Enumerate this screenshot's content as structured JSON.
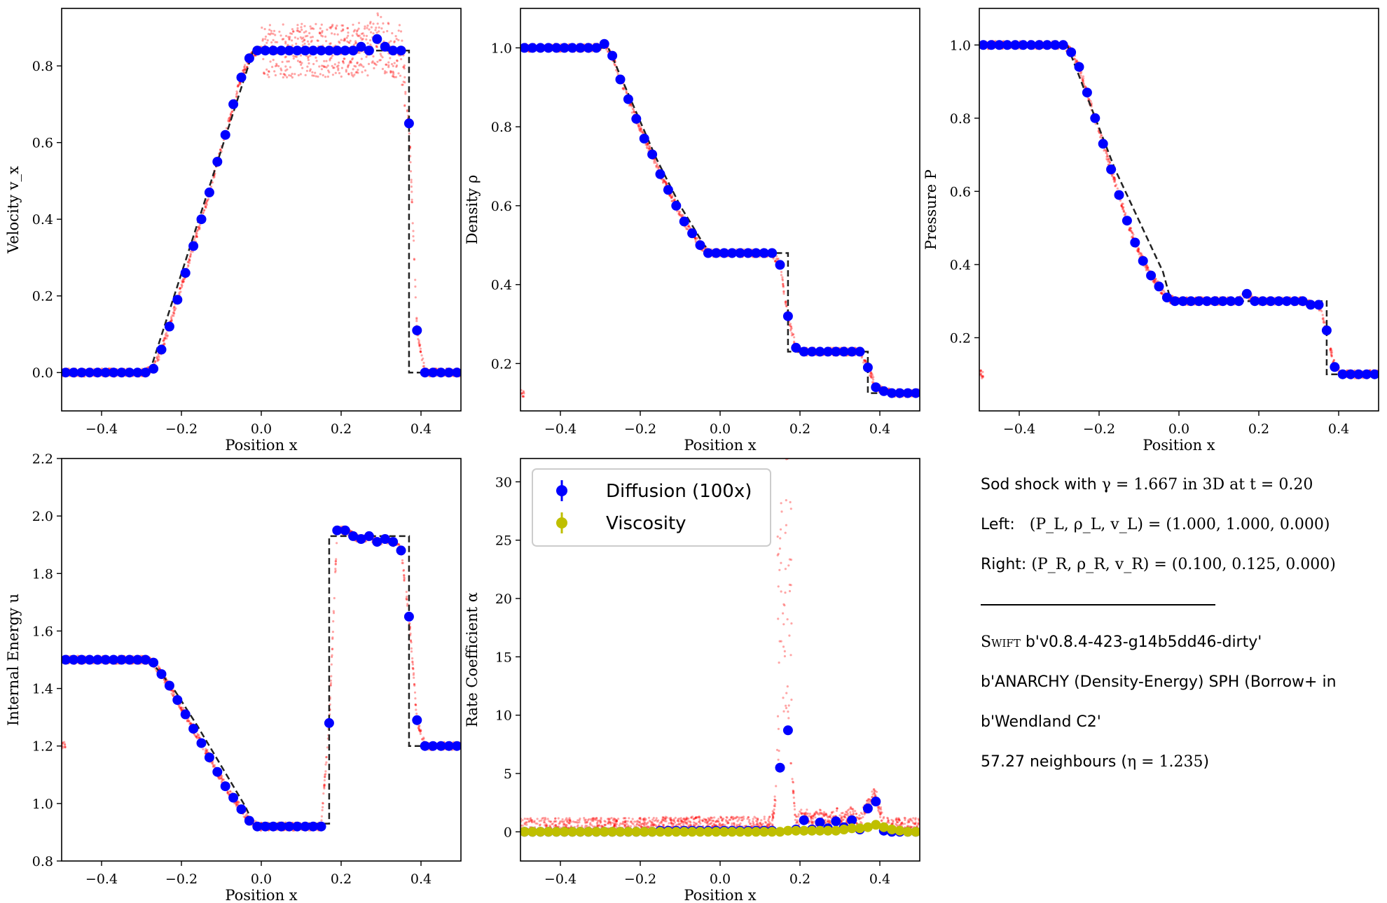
{
  "colors": {
    "scatter": "#ff0000",
    "diffusion": "#0000ff",
    "viscosity": "#bfbf00",
    "analytic": "#222222"
  },
  "panels": {
    "velocity": {
      "chart_data": {
        "type": "scatter",
        "xlabel": "Position x",
        "ylabel": "Velocity v_x",
        "xlim": [
          -0.5,
          0.5
        ],
        "ylim": [
          -0.1,
          0.95
        ],
        "xticks": [
          "−0.4",
          "−0.2",
          "0.0",
          "0.2",
          "0.4"
        ],
        "yticks": [
          "0.0",
          "0.2",
          "0.4",
          "0.6",
          "0.8"
        ],
        "analytic_x": [
          -0.5,
          -0.28,
          -0.02,
          0.37,
          0.37,
          0.5
        ],
        "analytic_y": [
          0.0,
          0.0,
          0.84,
          0.84,
          0.0,
          0.0
        ],
        "binned_x": [
          -0.49,
          -0.47,
          -0.45,
          -0.43,
          -0.41,
          -0.39,
          -0.37,
          -0.35,
          -0.33,
          -0.31,
          -0.29,
          -0.27,
          -0.25,
          -0.23,
          -0.21,
          -0.19,
          -0.17,
          -0.15,
          -0.13,
          -0.11,
          -0.09,
          -0.07,
          -0.05,
          -0.03,
          -0.01,
          0.01,
          0.03,
          0.05,
          0.07,
          0.09,
          0.11,
          0.13,
          0.15,
          0.17,
          0.19,
          0.21,
          0.23,
          0.25,
          0.27,
          0.29,
          0.31,
          0.33,
          0.35,
          0.37,
          0.39,
          0.41,
          0.43,
          0.45,
          0.47,
          0.49
        ],
        "binned_y": [
          0.0,
          0.0,
          0.0,
          0.0,
          0.0,
          0.0,
          0.0,
          0.0,
          0.0,
          0.0,
          0.0,
          0.01,
          0.06,
          0.12,
          0.19,
          0.26,
          0.33,
          0.4,
          0.47,
          0.55,
          0.62,
          0.7,
          0.77,
          0.82,
          0.84,
          0.84,
          0.84,
          0.84,
          0.84,
          0.84,
          0.84,
          0.84,
          0.84,
          0.84,
          0.84,
          0.84,
          0.84,
          0.85,
          0.84,
          0.87,
          0.85,
          0.84,
          0.84,
          0.65,
          0.11,
          0.0,
          0.0,
          0.0,
          0.0,
          0.0
        ]
      }
    },
    "density": {
      "chart_data": {
        "type": "scatter",
        "xlabel": "Position x",
        "ylabel": "Density ρ",
        "xlim": [
          -0.5,
          0.5
        ],
        "ylim": [
          0.08,
          1.1
        ],
        "xticks": [
          "−0.4",
          "−0.2",
          "0.0",
          "0.2",
          "0.4"
        ],
        "yticks": [
          "0.2",
          "0.4",
          "0.6",
          "0.8",
          "1.0"
        ],
        "analytic_x": [
          -0.5,
          -0.28,
          -0.22,
          -0.16,
          -0.1,
          -0.04,
          -0.02,
          0.17,
          0.17,
          0.37,
          0.37,
          0.5
        ],
        "analytic_y": [
          1.0,
          1.0,
          0.86,
          0.72,
          0.6,
          0.5,
          0.48,
          0.48,
          0.23,
          0.23,
          0.125,
          0.125
        ],
        "binned_x": [
          -0.49,
          -0.47,
          -0.45,
          -0.43,
          -0.41,
          -0.39,
          -0.37,
          -0.35,
          -0.33,
          -0.31,
          -0.29,
          -0.27,
          -0.25,
          -0.23,
          -0.21,
          -0.19,
          -0.17,
          -0.15,
          -0.13,
          -0.11,
          -0.09,
          -0.07,
          -0.05,
          -0.03,
          -0.01,
          0.01,
          0.03,
          0.05,
          0.07,
          0.09,
          0.11,
          0.13,
          0.15,
          0.17,
          0.19,
          0.21,
          0.23,
          0.25,
          0.27,
          0.29,
          0.31,
          0.33,
          0.35,
          0.37,
          0.39,
          0.41,
          0.43,
          0.45,
          0.47,
          0.49
        ],
        "binned_y": [
          1.0,
          1.0,
          1.0,
          1.0,
          1.0,
          1.0,
          1.0,
          1.0,
          1.0,
          1.0,
          1.01,
          0.98,
          0.92,
          0.87,
          0.82,
          0.77,
          0.73,
          0.68,
          0.64,
          0.6,
          0.56,
          0.53,
          0.5,
          0.48,
          0.48,
          0.48,
          0.48,
          0.48,
          0.48,
          0.48,
          0.48,
          0.48,
          0.45,
          0.32,
          0.24,
          0.23,
          0.23,
          0.23,
          0.23,
          0.23,
          0.23,
          0.23,
          0.23,
          0.19,
          0.14,
          0.13,
          0.125,
          0.125,
          0.125,
          0.125
        ]
      }
    },
    "pressure": {
      "chart_data": {
        "type": "scatter",
        "xlabel": "Position x",
        "ylabel": "Pressure P",
        "xlim": [
          -0.5,
          0.5
        ],
        "ylim": [
          0.0,
          1.1
        ],
        "xticks": [
          "−0.4",
          "−0.2",
          "0.0",
          "0.2",
          "0.4"
        ],
        "yticks": [
          "0.2",
          "0.4",
          "0.6",
          "0.8",
          "1.0"
        ],
        "analytic_x": [
          -0.5,
          -0.28,
          -0.22,
          -0.16,
          -0.1,
          -0.04,
          -0.02,
          0.37,
          0.37,
          0.5
        ],
        "analytic_y": [
          1.0,
          1.0,
          0.83,
          0.66,
          0.52,
          0.38,
          0.3,
          0.3,
          0.1,
          0.1
        ],
        "binned_x": [
          -0.49,
          -0.47,
          -0.45,
          -0.43,
          -0.41,
          -0.39,
          -0.37,
          -0.35,
          -0.33,
          -0.31,
          -0.29,
          -0.27,
          -0.25,
          -0.23,
          -0.21,
          -0.19,
          -0.17,
          -0.15,
          -0.13,
          -0.11,
          -0.09,
          -0.07,
          -0.05,
          -0.03,
          -0.01,
          0.01,
          0.03,
          0.05,
          0.07,
          0.09,
          0.11,
          0.13,
          0.15,
          0.17,
          0.19,
          0.21,
          0.23,
          0.25,
          0.27,
          0.29,
          0.31,
          0.33,
          0.35,
          0.37,
          0.39,
          0.41,
          0.43,
          0.45,
          0.47,
          0.49
        ],
        "binned_y": [
          1.0,
          1.0,
          1.0,
          1.0,
          1.0,
          1.0,
          1.0,
          1.0,
          1.0,
          1.0,
          1.0,
          0.98,
          0.94,
          0.87,
          0.8,
          0.73,
          0.66,
          0.59,
          0.52,
          0.46,
          0.41,
          0.37,
          0.34,
          0.31,
          0.3,
          0.3,
          0.3,
          0.3,
          0.3,
          0.3,
          0.3,
          0.3,
          0.3,
          0.32,
          0.3,
          0.3,
          0.3,
          0.3,
          0.3,
          0.3,
          0.3,
          0.29,
          0.29,
          0.22,
          0.12,
          0.1,
          0.1,
          0.1,
          0.1,
          0.1
        ]
      }
    },
    "energy": {
      "chart_data": {
        "type": "scatter",
        "xlabel": "Position x",
        "ylabel": "Internal Energy u",
        "xlim": [
          -0.5,
          0.5
        ],
        "ylim": [
          0.8,
          2.2
        ],
        "xticks": [
          "−0.4",
          "−0.2",
          "0.0",
          "0.2",
          "0.4"
        ],
        "yticks": [
          "0.8",
          "1.0",
          "1.2",
          "1.4",
          "1.6",
          "1.8",
          "2.0",
          "2.2"
        ],
        "analytic_x": [
          -0.5,
          -0.28,
          -0.22,
          -0.16,
          -0.1,
          -0.04,
          -0.02,
          0.17,
          0.17,
          0.37,
          0.37,
          0.5
        ],
        "analytic_y": [
          1.5,
          1.5,
          1.4,
          1.27,
          1.13,
          0.99,
          0.93,
          0.93,
          1.93,
          1.93,
          1.2,
          1.2
        ],
        "binned_x": [
          -0.49,
          -0.47,
          -0.45,
          -0.43,
          -0.41,
          -0.39,
          -0.37,
          -0.35,
          -0.33,
          -0.31,
          -0.29,
          -0.27,
          -0.25,
          -0.23,
          -0.21,
          -0.19,
          -0.17,
          -0.15,
          -0.13,
          -0.11,
          -0.09,
          -0.07,
          -0.05,
          -0.03,
          -0.01,
          0.01,
          0.03,
          0.05,
          0.07,
          0.09,
          0.11,
          0.13,
          0.15,
          0.17,
          0.19,
          0.21,
          0.23,
          0.25,
          0.27,
          0.29,
          0.31,
          0.33,
          0.35,
          0.37,
          0.39,
          0.41,
          0.43,
          0.45,
          0.47,
          0.49
        ],
        "binned_y": [
          1.5,
          1.5,
          1.5,
          1.5,
          1.5,
          1.5,
          1.5,
          1.5,
          1.5,
          1.5,
          1.5,
          1.49,
          1.45,
          1.41,
          1.36,
          1.31,
          1.26,
          1.21,
          1.16,
          1.11,
          1.06,
          1.02,
          0.98,
          0.94,
          0.92,
          0.92,
          0.92,
          0.92,
          0.92,
          0.92,
          0.92,
          0.92,
          0.92,
          1.28,
          1.95,
          1.95,
          1.93,
          1.92,
          1.93,
          1.91,
          1.92,
          1.91,
          1.88,
          1.65,
          1.29,
          1.2,
          1.2,
          1.2,
          1.2,
          1.2
        ]
      }
    },
    "rate": {
      "chart_data": {
        "type": "scatter",
        "xlabel": "Position x",
        "ylabel": "Rate Coefficient α",
        "xlim": [
          -0.5,
          0.5
        ],
        "ylim": [
          -2.5,
          32
        ],
        "xticks": [
          "−0.4",
          "−0.2",
          "0.0",
          "0.2",
          "0.4"
        ],
        "yticks": [
          "0",
          "5",
          "10",
          "15",
          "20",
          "25",
          "30"
        ],
        "series": [
          {
            "name": "Diffusion (100x)",
            "x": [
              -0.49,
              -0.47,
              -0.45,
              -0.43,
              -0.41,
              -0.39,
              -0.37,
              -0.35,
              -0.33,
              -0.31,
              -0.29,
              -0.27,
              -0.25,
              -0.23,
              -0.21,
              -0.19,
              -0.17,
              -0.15,
              -0.13,
              -0.11,
              -0.09,
              -0.07,
              -0.05,
              -0.03,
              -0.01,
              0.01,
              0.03,
              0.05,
              0.07,
              0.09,
              0.11,
              0.13,
              0.15,
              0.17,
              0.19,
              0.21,
              0.23,
              0.25,
              0.27,
              0.29,
              0.31,
              0.33,
              0.35,
              0.37,
              0.39,
              0.41,
              0.43,
              0.45,
              0.47,
              0.49
            ],
            "y": [
              0,
              0,
              0,
              0,
              0,
              0,
              0,
              0,
              0,
              0,
              0,
              0,
              0,
              0,
              0,
              0,
              0,
              0.1,
              0.1,
              0.1,
              0.1,
              0.1,
              0.1,
              0.1,
              0.1,
              0.1,
              0.1,
              0.1,
              0.1,
              0.1,
              0.1,
              0.1,
              5.5,
              8.7,
              0.2,
              1.0,
              0.2,
              0.8,
              0.3,
              0.9,
              0.4,
              1.0,
              0.2,
              2.0,
              2.6,
              0.1,
              0,
              0,
              0,
              0
            ]
          },
          {
            "name": "Viscosity",
            "x": [
              -0.49,
              -0.47,
              -0.45,
              -0.43,
              -0.41,
              -0.39,
              -0.37,
              -0.35,
              -0.33,
              -0.31,
              -0.29,
              -0.27,
              -0.25,
              -0.23,
              -0.21,
              -0.19,
              -0.17,
              -0.15,
              -0.13,
              -0.11,
              -0.09,
              -0.07,
              -0.05,
              -0.03,
              -0.01,
              0.01,
              0.03,
              0.05,
              0.07,
              0.09,
              0.11,
              0.13,
              0.15,
              0.17,
              0.19,
              0.21,
              0.23,
              0.25,
              0.27,
              0.29,
              0.31,
              0.33,
              0.35,
              0.37,
              0.39,
              0.41,
              0.43,
              0.45,
              0.47,
              0.49
            ],
            "y": [
              0,
              0,
              0,
              0,
              0,
              0,
              0,
              0,
              0,
              0,
              0,
              0,
              0,
              0,
              0,
              0,
              0,
              0,
              0,
              0,
              0,
              0,
              0,
              0,
              0,
              0,
              0,
              0,
              0,
              0,
              0,
              0,
              0,
              0.1,
              0.1,
              0.1,
              0.1,
              0.1,
              0.1,
              0.1,
              0.2,
              0.3,
              0.3,
              0.4,
              0.6,
              0.4,
              0.2,
              0.1,
              0.0,
              0.0
            ]
          }
        ],
        "legend": {
          "placement": "upper-left",
          "entries": [
            "Diffusion (100x)",
            "Viscosity"
          ]
        }
      }
    }
  },
  "info": {
    "line1_prefix": "Sod shock with ",
    "line1_math": "γ = 1.667 in 3D at t = 0.20",
    "line2_prefix": "Left:   ",
    "line2_math": "(P_L, ρ_L, v_L) = (1.000, 1.000, 0.000)",
    "line3_prefix": "Right: ",
    "line3_math": "(P_R, ρ_R, v_R) = (0.100, 0.125, 0.000)",
    "code_name": "Swift",
    "code_version": " b'v0.8.4-423-g14b5dd46-dirty'",
    "scheme": "b'ANARCHY (Density-Energy) SPH (Borrow+ in",
    "kernel": "b'Wendland C2'",
    "neighbours_prefix": "57.27 neighbours (",
    "neighbours_math": "η = 1.235",
    "neighbours_suffix": ")"
  }
}
